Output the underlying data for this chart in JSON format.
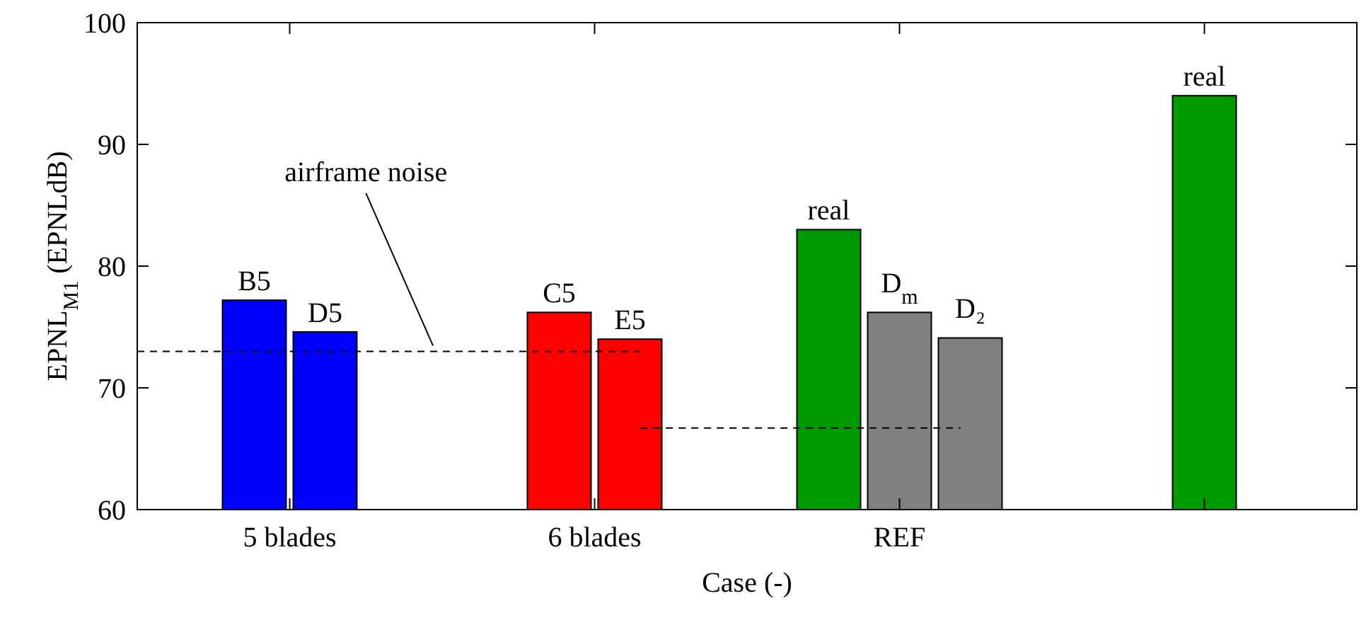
{
  "chart_data": {
    "type": "bar",
    "xlabel": "Case (-)",
    "ylabel": "EPNL$_{M1}$ (EPNLdB)",
    "categories": [
      "5 blades",
      "6 blades",
      "REF",
      null
    ],
    "series": [
      {
        "colors": [
          "#0000ff",
          "#ff0000",
          "#009900",
          "#009900"
        ],
        "values": [
          77.2,
          76.2,
          83,
          94
        ],
        "value_labels": [
          "B5",
          "C5",
          "real",
          "real"
        ]
      },
      {
        "colors": [
          "#0000ff",
          "#ff0000",
          "#808080",
          null
        ],
        "values": [
          74.6,
          74,
          76.2,
          null
        ],
        "value_labels": [
          "D5",
          "E5",
          "D$_{m}$",
          null
        ]
      },
      {
        "colors": [
          null,
          null,
          "#808080",
          null
        ],
        "values": [
          null,
          null,
          74.1,
          null
        ],
        "value_labels": [
          null,
          null,
          "D₂",
          null
        ]
      }
    ],
    "ylim": [
      60,
      100
    ],
    "yticks": [
      60,
      70,
      80,
      90,
      100
    ],
    "ref_lines": [
      {
        "axis": "y",
        "value": 73,
        "label": "airframe noise",
        "line_style": "dashed"
      },
      {
        "axis": "y",
        "value": 66.7,
        "line_style": "dashed"
      }
    ],
    "grid": false
  }
}
